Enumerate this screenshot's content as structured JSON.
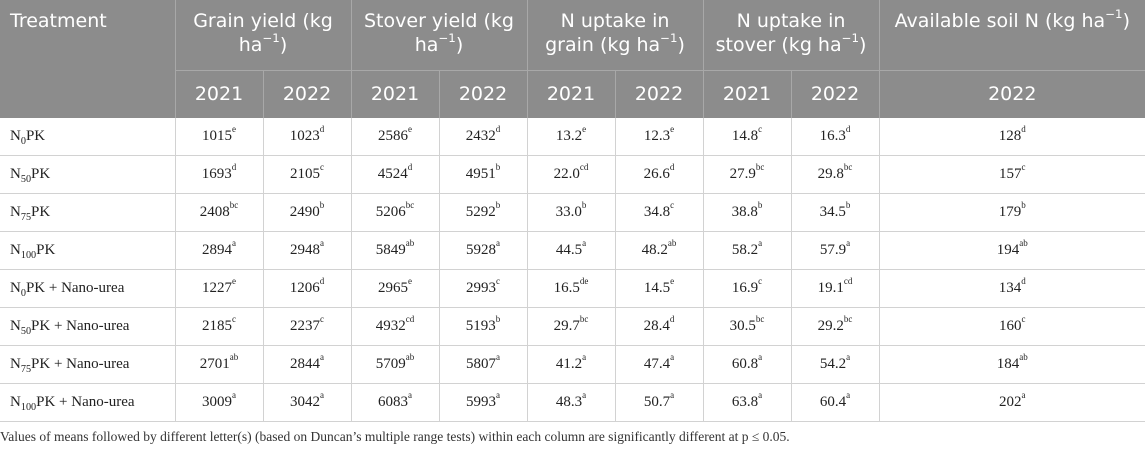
{
  "header": {
    "treatment": "Treatment",
    "groups": [
      {
        "text": "Grain yield (kg ha",
        "sup": "−1",
        "after": ")"
      },
      {
        "text": "Stover yield (kg ha",
        "sup": "−1",
        "after": ")"
      },
      {
        "text": "N uptake in grain (kg ha",
        "sup": "−1",
        "after": ")"
      },
      {
        "text": "N uptake in stover (kg ha",
        "sup": "−1",
        "after": ")"
      },
      {
        "text": "Available soil N (kg ha",
        "sup": "−1",
        "after": ")"
      }
    ],
    "years": [
      "2021",
      "2022",
      "2021",
      "2022",
      "2021",
      "2022",
      "2021",
      "2022",
      "2022"
    ]
  },
  "rows": [
    {
      "t": {
        "a": "N",
        "s": "0",
        "b": "PK"
      },
      "c": [
        [
          "1015",
          "e"
        ],
        [
          "1023",
          "d"
        ],
        [
          "2586",
          "e"
        ],
        [
          "2432",
          "d"
        ],
        [
          "13.2",
          "e"
        ],
        [
          "12.3",
          "e"
        ],
        [
          "14.8",
          "c"
        ],
        [
          "16.3",
          "d"
        ],
        [
          "128",
          "d"
        ]
      ]
    },
    {
      "t": {
        "a": "N",
        "s": "50",
        "b": "PK"
      },
      "c": [
        [
          "1693",
          "d"
        ],
        [
          "2105",
          "c"
        ],
        [
          "4524",
          "d"
        ],
        [
          "4951",
          "b"
        ],
        [
          "22.0",
          "cd"
        ],
        [
          "26.6",
          "d"
        ],
        [
          "27.9",
          "bc"
        ],
        [
          "29.8",
          "bc"
        ],
        [
          "157",
          "c"
        ]
      ]
    },
    {
      "t": {
        "a": "N",
        "s": "75",
        "b": "PK"
      },
      "c": [
        [
          "2408",
          "bc"
        ],
        [
          "2490",
          "b"
        ],
        [
          "5206",
          "bc"
        ],
        [
          "5292",
          "b"
        ],
        [
          "33.0",
          "b"
        ],
        [
          "34.8",
          "c"
        ],
        [
          "38.8",
          "b"
        ],
        [
          "34.5",
          "b"
        ],
        [
          "179",
          "b"
        ]
      ]
    },
    {
      "t": {
        "a": "N",
        "s": "100",
        "b": "PK"
      },
      "c": [
        [
          "2894",
          "a"
        ],
        [
          "2948",
          "a"
        ],
        [
          "5849",
          "ab"
        ],
        [
          "5928",
          "a"
        ],
        [
          "44.5",
          "a"
        ],
        [
          "48.2",
          "ab"
        ],
        [
          "58.2",
          "a"
        ],
        [
          "57.9",
          "a"
        ],
        [
          "194",
          "ab"
        ]
      ]
    },
    {
      "t": {
        "a": "N",
        "s": "0",
        "b": "PK + Nano-urea"
      },
      "c": [
        [
          "1227",
          "e"
        ],
        [
          "1206",
          "d"
        ],
        [
          "2965",
          "e"
        ],
        [
          "2993",
          "c"
        ],
        [
          "16.5",
          "de"
        ],
        [
          "14.5",
          "e"
        ],
        [
          "16.9",
          "c"
        ],
        [
          "19.1",
          "cd"
        ],
        [
          "134",
          "d"
        ]
      ]
    },
    {
      "t": {
        "a": "N",
        "s": "50",
        "b": "PK + Nano-urea"
      },
      "c": [
        [
          "2185",
          "c"
        ],
        [
          "2237",
          "c"
        ],
        [
          "4932",
          "cd"
        ],
        [
          "5193",
          "b"
        ],
        [
          "29.7",
          "bc"
        ],
        [
          "28.4",
          "d"
        ],
        [
          "30.5",
          "bc"
        ],
        [
          "29.2",
          "bc"
        ],
        [
          "160",
          "c"
        ]
      ]
    },
    {
      "t": {
        "a": "N",
        "s": "75",
        "b": "PK + Nano-urea"
      },
      "c": [
        [
          "2701",
          "ab"
        ],
        [
          "2844",
          "a"
        ],
        [
          "5709",
          "ab"
        ],
        [
          "5807",
          "a"
        ],
        [
          "41.2",
          "a"
        ],
        [
          "47.4",
          "a"
        ],
        [
          "60.8",
          "a"
        ],
        [
          "54.2",
          "a"
        ],
        [
          "184",
          "ab"
        ]
      ]
    },
    {
      "t": {
        "a": "N",
        "s": "100",
        "b": "PK + Nano-urea"
      },
      "c": [
        [
          "3009",
          "a"
        ],
        [
          "3042",
          "a"
        ],
        [
          "6083",
          "a"
        ],
        [
          "5993",
          "a"
        ],
        [
          "48.3",
          "a"
        ],
        [
          "50.7",
          "a"
        ],
        [
          "63.8",
          "a"
        ],
        [
          "60.4",
          "a"
        ],
        [
          "202",
          "a"
        ]
      ]
    }
  ],
  "footnote": "Values of means followed by different letter(s) (based on Duncan’s multiple range tests) within each column are significantly different at p ≤ 0.05."
}
